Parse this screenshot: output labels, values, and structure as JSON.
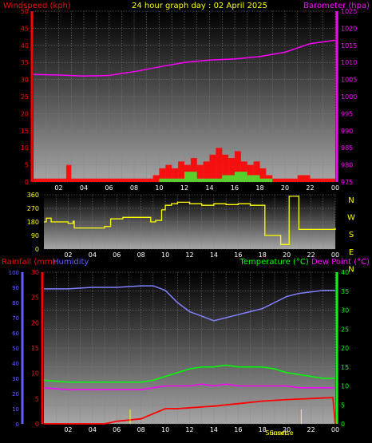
{
  "header": {
    "left_title": "Windspeed (kph)",
    "center_title": "24 hour graph day : 02 April 2025",
    "right_title": "Barometer (hpa)"
  },
  "colors": {
    "windspeed": "#ff0000",
    "gust": "#ff2a2a",
    "barometer": "#ff00ff",
    "wind_direction": "#ffff00",
    "rainfall": "#ff0000",
    "humidity": "#8080ff",
    "temperature": "#00ff00",
    "dewpoint": "#ff00ff",
    "gold": "#ffff00",
    "title_yellow": "#ffff00",
    "title_magenta": "#ff00ff",
    "title_red": "#ff0000",
    "title_green": "#00ff00",
    "title_blue": "#6060ff"
  },
  "x_axis": {
    "ticks": [
      "02",
      "04",
      "06",
      "08",
      "10",
      "12",
      "14",
      "16",
      "18",
      "20",
      "22",
      "00"
    ]
  },
  "chart_data": [
    {
      "type": "line",
      "panel": "wind-barometer",
      "left_axis": {
        "label": "Windspeed (kph)",
        "range": [
          0,
          50
        ],
        "ticks": [
          0,
          5,
          10,
          15,
          20,
          25,
          30,
          35,
          40,
          45,
          50
        ]
      },
      "right_axis": {
        "label": "Barometer (hpa)",
        "range": [
          975,
          1025
        ],
        "ticks": [
          975,
          980,
          985,
          990,
          995,
          1000,
          1005,
          1010,
          1015,
          1020,
          1025
        ]
      },
      "series": [
        {
          "name": "Barometer (hpa)",
          "axis": "right",
          "x": [
            0,
            2,
            4,
            6,
            8,
            10,
            12,
            14,
            16,
            18,
            20,
            22,
            24
          ],
          "values": [
            1006.5,
            1006.3,
            1006.0,
            1006.2,
            1007.3,
            1008.7,
            1010.0,
            1010.7,
            1011.0,
            1011.7,
            1013.0,
            1015.5,
            1016.5
          ]
        },
        {
          "name": "Windspeed (kph)",
          "axis": "left",
          "x": [
            0,
            2,
            2.6,
            3,
            6,
            9,
            9.5,
            10,
            10.5,
            11,
            11.5,
            12,
            12.5,
            13,
            13.5,
            14,
            14.5,
            15,
            15.5,
            16,
            16.5,
            17,
            17.5,
            18,
            18.5,
            19,
            20,
            21,
            22,
            23,
            24
          ],
          "values": [
            1,
            1,
            5,
            1,
            1,
            1,
            2,
            4,
            5,
            4,
            6,
            5,
            7,
            5,
            6,
            8,
            10,
            8,
            7,
            9,
            6,
            5,
            6,
            4,
            2,
            1,
            1,
            2,
            1,
            1,
            1
          ]
        },
        {
          "name": "Gust",
          "axis": "left",
          "x": [
            0,
            9,
            10,
            11,
            12,
            13,
            14,
            15,
            16,
            17,
            18,
            19,
            24
          ],
          "values": [
            0,
            0,
            1,
            1,
            3,
            1,
            1,
            2,
            3,
            2,
            1,
            0,
            0
          ]
        }
      ]
    },
    {
      "type": "line",
      "panel": "wind-direction",
      "left_axis": {
        "range": [
          0,
          360
        ],
        "ticks": [
          0,
          90,
          180,
          270,
          360
        ]
      },
      "right_axis": {
        "ticks": [
          "N",
          "W",
          "S",
          "E",
          "N"
        ]
      },
      "series": [
        {
          "name": "Wind direction",
          "x": [
            0,
            0.2,
            0.6,
            1.0,
            2.0,
            2.4,
            2.5,
            3,
            5,
            5.5,
            6.5,
            8.5,
            8.8,
            9.2,
            9.7,
            10,
            10.5,
            11,
            12,
            13,
            14,
            15,
            16,
            17,
            18,
            18.2,
            19.3,
            19.5,
            20,
            20.2,
            20.5,
            21,
            24
          ],
          "values": [
            180,
            205,
            180,
            180,
            170,
            185,
            140,
            140,
            150,
            200,
            210,
            210,
            180,
            190,
            260,
            290,
            300,
            310,
            300,
            290,
            300,
            295,
            300,
            290,
            290,
            90,
            90,
            30,
            30,
            350,
            350,
            130,
            140
          ]
        }
      ]
    },
    {
      "type": "line",
      "panel": "rain-humidity-temperature",
      "left_axis_rain": {
        "label": "Rainfall (mm)",
        "range": [
          0,
          30
        ],
        "ticks": [
          0,
          5,
          10,
          15,
          20,
          25,
          30
        ]
      },
      "left_axis_humidity": {
        "label": "Humidity",
        "range": [
          0,
          100
        ],
        "ticks": [
          0,
          10,
          20,
          30,
          40,
          50,
          60,
          70,
          80,
          90,
          100
        ]
      },
      "right_axis": {
        "label": "Temperature (°C) Dew Point (°C)",
        "range": [
          0,
          40
        ],
        "ticks": [
          0,
          5,
          10,
          15,
          20,
          25,
          30,
          35,
          40
        ]
      },
      "series": [
        {
          "name": "Humidity",
          "axis": "humidity",
          "x": [
            0,
            2,
            4,
            6,
            8,
            9,
            10,
            11,
            12,
            13,
            14,
            15,
            16,
            17,
            18,
            19,
            20,
            21,
            22,
            23,
            24
          ],
          "values": [
            89,
            89,
            90,
            90,
            91,
            91,
            88,
            80,
            74,
            71,
            68,
            70,
            72,
            74,
            76,
            80,
            84,
            86,
            87,
            88,
            88
          ]
        },
        {
          "name": "Temperature (°C)",
          "axis": "right",
          "x": [
            0,
            2,
            4,
            6,
            8,
            9,
            10,
            11,
            12,
            13,
            14,
            15,
            16,
            17,
            18,
            19,
            20,
            21,
            22,
            23,
            24
          ],
          "values": [
            11.5,
            11,
            11,
            11,
            11,
            11.5,
            12.5,
            13.5,
            14.5,
            15,
            15,
            15.5,
            15,
            15,
            15,
            14.5,
            13.5,
            13,
            12.5,
            12,
            12
          ]
        },
        {
          "name": "Dew Point (°C)",
          "axis": "right",
          "x": [
            0,
            2,
            4,
            6,
            8,
            9,
            10,
            11,
            12,
            13,
            14,
            15,
            16,
            17,
            18,
            19,
            20,
            21,
            22,
            23,
            24
          ],
          "values": [
            9.5,
            9,
            9,
            9,
            9,
            9.5,
            10,
            10,
            10,
            10.5,
            10,
            10.5,
            10,
            10,
            10,
            10,
            10,
            9.5,
            9.5,
            9.5,
            9.5
          ]
        },
        {
          "name": "Rainfall (mm)",
          "axis": "rain",
          "x": [
            0,
            5,
            6,
            8,
            9,
            10,
            11,
            14,
            16,
            18,
            20,
            22,
            23.8,
            24
          ],
          "values": [
            0,
            0,
            0.5,
            1,
            2,
            3,
            3,
            3.5,
            4,
            4.5,
            4.8,
            5,
            5.2,
            0
          ]
        }
      ],
      "annotations": [
        "Sunset",
        "Sunrise"
      ]
    }
  ]
}
